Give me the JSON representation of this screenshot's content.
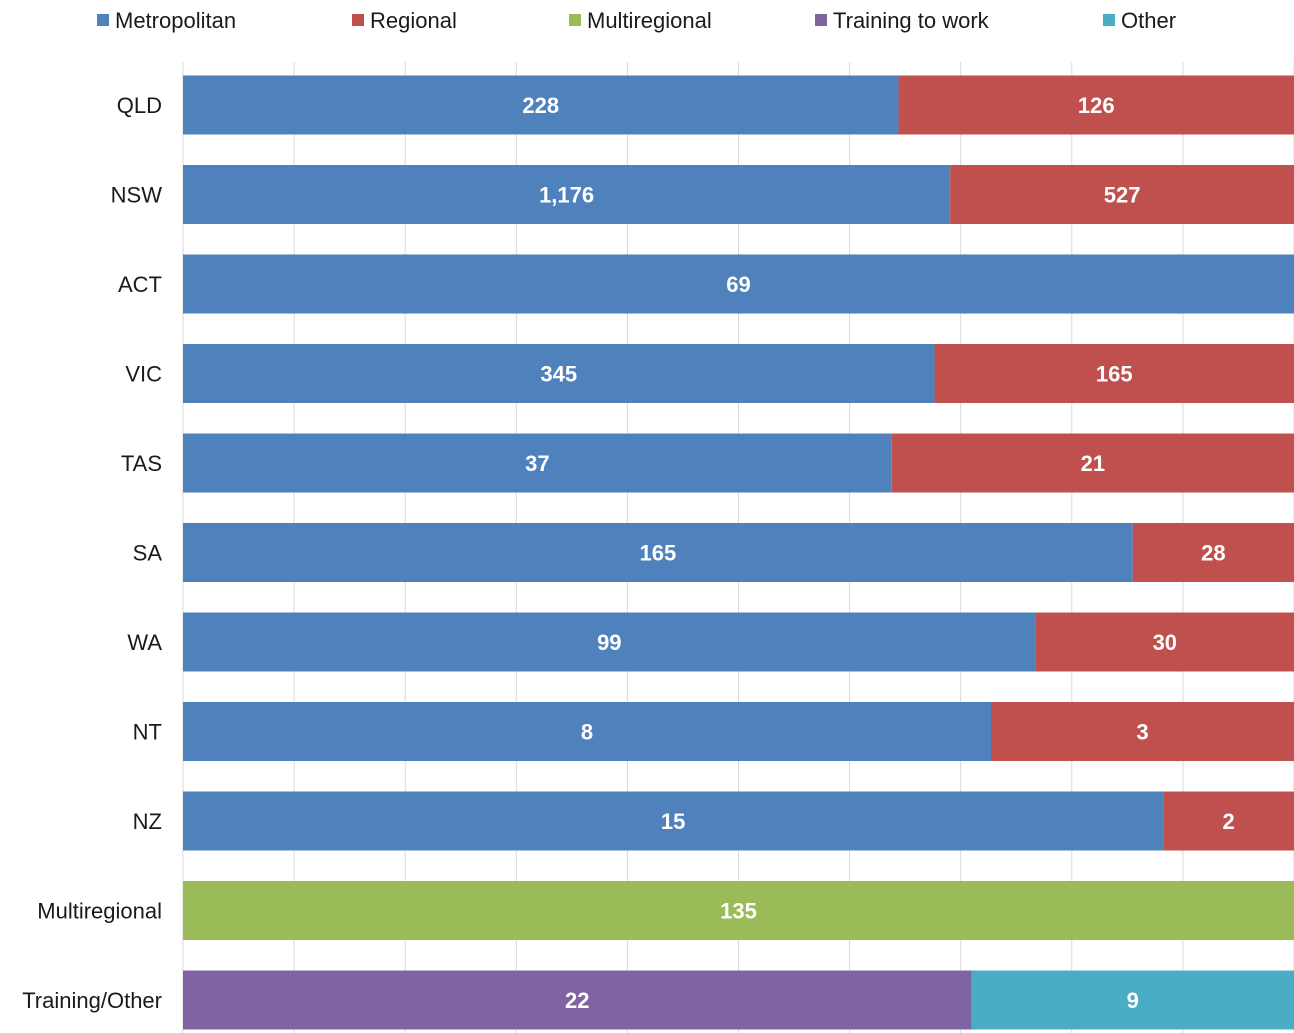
{
  "chart_data": {
    "type": "bar",
    "orientation": "horizontal",
    "stacked": "100%",
    "legend_position": "top",
    "grid": true,
    "title": "",
    "xlabel": "",
    "ylabel": "",
    "categories": [
      "QLD",
      "NSW",
      "ACT",
      "VIC",
      "TAS",
      "SA",
      "WA",
      "NT",
      "NZ",
      "Multiregional",
      "Training/Other"
    ],
    "series": [
      {
        "name": "Metropolitan",
        "color": "#4f81bd",
        "values": [
          228,
          1176,
          69,
          345,
          37,
          165,
          99,
          8,
          15,
          null,
          null
        ],
        "labels": [
          "228",
          "1,176",
          "69",
          "345",
          "37",
          "165",
          "99",
          "8",
          "15",
          "",
          ""
        ]
      },
      {
        "name": "Regional",
        "color": "#c0504d",
        "values": [
          126,
          527,
          null,
          165,
          21,
          28,
          30,
          3,
          2,
          null,
          null
        ],
        "labels": [
          "126",
          "527",
          "",
          "165",
          "21",
          "28",
          "30",
          "3",
          "2",
          "",
          ""
        ]
      },
      {
        "name": "Multiregional",
        "color": "#9bbb59",
        "values": [
          null,
          null,
          null,
          null,
          null,
          null,
          null,
          null,
          null,
          135,
          null
        ],
        "labels": [
          "",
          "",
          "",
          "",
          "",
          "",
          "",
          "",
          "",
          "135",
          ""
        ]
      },
      {
        "name": "Training to work",
        "color": "#8064a2",
        "values": [
          null,
          null,
          null,
          null,
          null,
          null,
          null,
          null,
          null,
          null,
          22
        ],
        "labels": [
          "",
          "",
          "",
          "",
          "",
          "",
          "",
          "",
          "",
          "",
          "22"
        ]
      },
      {
        "name": "Other",
        "color": "#4bacc6",
        "values": [
          null,
          null,
          null,
          null,
          null,
          null,
          null,
          null,
          null,
          null,
          9
        ],
        "labels": [
          "",
          "",
          "",
          "",
          "",
          "",
          "",
          "",
          "",
          "",
          "9"
        ]
      }
    ],
    "gridline_color": "#d9d9d9",
    "text_color": "#1a1a1a",
    "label_color": "#ffffff"
  }
}
